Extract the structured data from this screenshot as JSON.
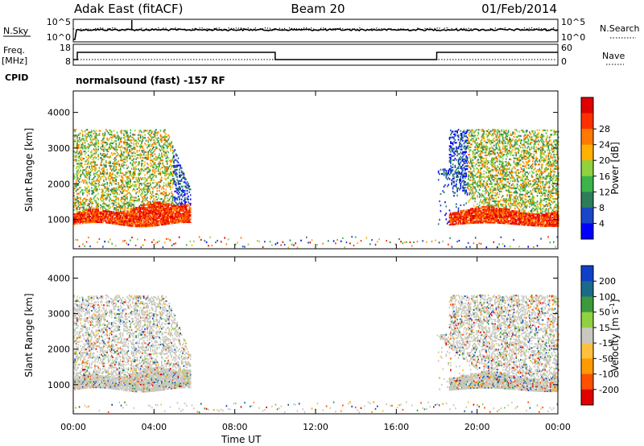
{
  "header": {
    "station": "Adak East (fitACF)",
    "beam": "Beam 20",
    "date": "01/Feb/2014"
  },
  "labels": {
    "nsky": "N.Sky",
    "nsearch": "N.Search",
    "freq_line1": "Freq.",
    "freq_line2": "[MHz]",
    "nave": "Nave",
    "cpid": "CPID",
    "cpid_value": "normalsound (fast) -157 RF"
  },
  "noise_panel": {
    "y_ticks": [
      "10^5",
      "10^0"
    ],
    "right_ticks": [
      "10^5",
      "10^0"
    ]
  },
  "freq_panel": {
    "freq_ticks": [
      18,
      8
    ],
    "nave_ticks": [
      60,
      0
    ],
    "freq_steps": [
      {
        "t0": 0,
        "t1": 0.2,
        "level": 0.0
      },
      {
        "t0": 0.2,
        "t1": 10.0,
        "level": 0.55
      },
      {
        "t0": 10.0,
        "t1": 18.0,
        "level": 0.0
      },
      {
        "t0": 18.0,
        "t1": 24.0,
        "level": 0.55
      }
    ]
  },
  "colors": {
    "power": [
      "#0000ff",
      "#1a46c8",
      "#2e7d5a",
      "#3cb44b",
      "#8fd13f",
      "#ffb000",
      "#ff7a00",
      "#ff3000",
      "#e00000"
    ],
    "velocity": [
      "#e00000",
      "#ff5000",
      "#ff9a00",
      "#ffc040",
      "#c8c8c0",
      "#8fd13f",
      "#3c9a3c",
      "#1a6a8a",
      "#1040c8"
    ]
  },
  "chart_data": [
    {
      "type": "heatmap",
      "title": "Power",
      "xlabel": "Time UT",
      "ylabel": "Slant Range [km]",
      "xlim": [
        0,
        24
      ],
      "ylim": [
        180,
        4600
      ],
      "x_ticks": [
        "00:00",
        "04:00",
        "08:00",
        "12:00",
        "16:00",
        "20:00",
        "00:00"
      ],
      "y_ticks": [
        1000,
        2000,
        3000,
        4000
      ],
      "colorbar_label": "Power [dB]",
      "colorbar_ticks": [
        "4",
        "8",
        "12",
        "16",
        "20",
        "24",
        "28"
      ],
      "regions": [
        {
          "name": "dawn-band",
          "t0": 0,
          "t1": 5.8,
          "r_low": 850,
          "r_high": 1300,
          "value": 28
        },
        {
          "name": "dawn-upper",
          "t0": 0,
          "t1": 4.6,
          "r_low": 1300,
          "r_high": 3500,
          "value": 16
        },
        {
          "name": "evening-band",
          "t0": 18.4,
          "t1": 24,
          "r_low": 850,
          "r_high": 1400,
          "value": 26
        },
        {
          "name": "evening-upper",
          "t0": 18.0,
          "t1": 24,
          "r_low": 1400,
          "r_high": 3500,
          "value": 12
        }
      ]
    },
    {
      "type": "heatmap",
      "title": "Velocity",
      "xlabel": "Time UT",
      "ylabel": "Slant Range [km]",
      "xlim": [
        0,
        24
      ],
      "ylim": [
        180,
        4600
      ],
      "x_ticks": [
        "00:00",
        "04:00",
        "08:00",
        "12:00",
        "16:00",
        "20:00",
        "00:00"
      ],
      "y_ticks": [
        1000,
        2000,
        3000,
        4000
      ],
      "colorbar_label": "Velocity [m s",
      "colorbar_sup": "-1",
      "colorbar_label_end": "]",
      "colorbar_ticks": [
        "200",
        "100",
        "50",
        "15",
        "-15",
        "-50",
        "-100",
        "-200"
      ],
      "regions": [
        {
          "name": "dawn-band",
          "t0": 0,
          "t1": 5.8,
          "r_low": 850,
          "r_high": 1300,
          "value": 0
        },
        {
          "name": "dawn-upper",
          "t0": 0,
          "t1": 4.6,
          "r_low": 1300,
          "r_high": 3500,
          "value": 0
        },
        {
          "name": "evening-band",
          "t0": 18.4,
          "t1": 24,
          "r_low": 850,
          "r_high": 1400,
          "value": 0
        },
        {
          "name": "evening-upper",
          "t0": 18.0,
          "t1": 24,
          "r_low": 1400,
          "r_high": 3500,
          "value": 0
        }
      ]
    }
  ]
}
